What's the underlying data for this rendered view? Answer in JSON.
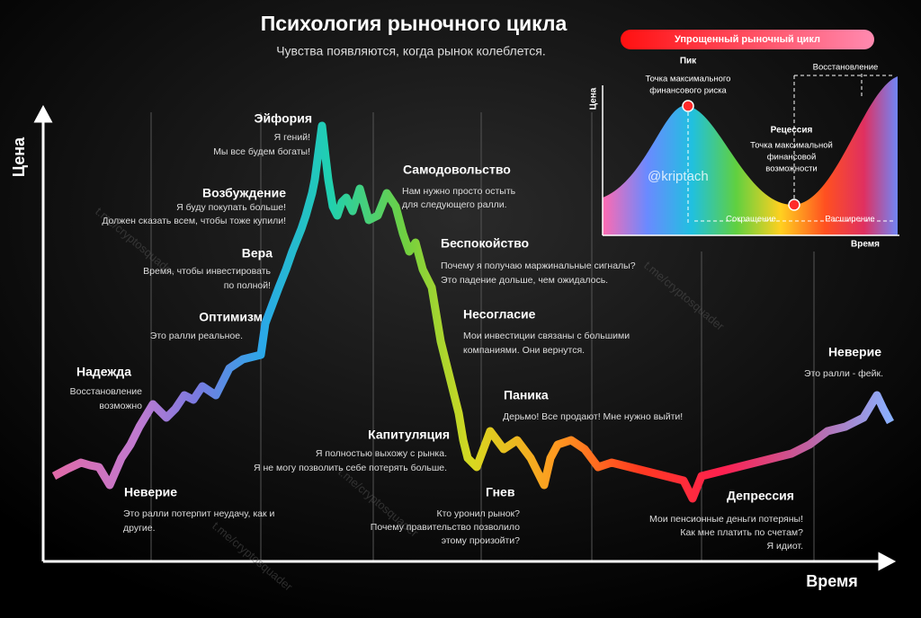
{
  "header": {
    "title": "Психология рыночного цикла",
    "subtitle": "Чувства появляются, когда рынок колеблется."
  },
  "axes": {
    "y": "Цена",
    "x": "Время"
  },
  "stages": [
    {
      "name": "Эйфория",
      "lines": [
        "Я гений!",
        "Мы все будем богаты!"
      ]
    },
    {
      "name": "Возбуждение",
      "lines": [
        "Я буду покупать больше!",
        "Должен сказать всем, чтобы тоже купили!"
      ]
    },
    {
      "name": "Вера",
      "lines": [
        "Время, чтобы инвестировать",
        "по полной!"
      ]
    },
    {
      "name": "Оптимизм",
      "lines": [
        "Это ралли реальное."
      ]
    },
    {
      "name": "Надежда",
      "lines": [
        "Восстановление",
        "возможно"
      ]
    },
    {
      "name": "Неверие",
      "lines": [
        "Это ралли потерпит неудачу, как и",
        "другие."
      ]
    },
    {
      "name": "Самодовольство",
      "lines": [
        "Нам нужно просто остыть",
        "для следующего ралли."
      ]
    },
    {
      "name": "Беспокойство",
      "lines": [
        "Почему я получаю маржинальные сигналы?",
        "Это падение дольше, чем ожидалось."
      ]
    },
    {
      "name": "Несогласие",
      "lines": [
        "Мои инвестиции связаны с большими",
        "компаниями. Они вернутся."
      ]
    },
    {
      "name": "Паника",
      "lines": [
        "Дерьмо! Все продают! Мне нужно выйти!"
      ]
    },
    {
      "name": "Капитуляция",
      "lines": [
        "Я полностью выхожу с рынка.",
        "Я не могу позволить себе потерять больше."
      ]
    },
    {
      "name": "Гнев",
      "lines": [
        "Кто уронил рынок?",
        "Почему правительство позволило",
        "этому произойти?"
      ]
    },
    {
      "name": "Депрессия",
      "lines": [
        "Мои пенсионные деньги потеряны!",
        "Как мне платить по счетам?",
        "Я идиот."
      ]
    },
    {
      "name": "Неверие",
      "lines": [
        "Это ралли - фейк."
      ]
    }
  ],
  "inset": {
    "title": "Упрощенный рыночный цикл",
    "y_axis": "Цена",
    "x_axis": "Время",
    "peak": {
      "name": "Пик",
      "lines": [
        "Точка максимального",
        "финансового риска"
      ]
    },
    "recession": {
      "name": "Рецессия",
      "lines": [
        "Точка максимальной",
        "финансовой",
        "возможности"
      ]
    },
    "recovery": "Восстановление",
    "contraction": "Сокращение",
    "expansion": "Расширение",
    "watermark": "@kriptach"
  },
  "watermark": "t.me/cryptosquader"
}
